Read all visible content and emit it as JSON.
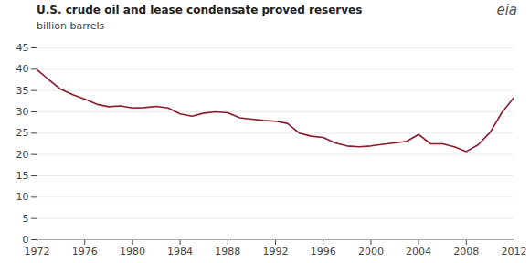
{
  "chart_data": {
    "type": "line",
    "title": "U.S. crude oil and lease condensate  proved reserves",
    "ylabel": "billion barrels",
    "annotations": [
      "eia"
    ],
    "x": [
      1972,
      1973,
      1974,
      1975,
      1976,
      1977,
      1978,
      1979,
      1980,
      1981,
      1982,
      1983,
      1984,
      1985,
      1986,
      1987,
      1988,
      1989,
      1990,
      1991,
      1992,
      1993,
      1994,
      1995,
      1996,
      1997,
      1998,
      1999,
      2000,
      2001,
      2002,
      2003,
      2004,
      2005,
      2006,
      2007,
      2008,
      2009,
      2010,
      2011,
      2012
    ],
    "values": [
      39.9,
      37.5,
      35.3,
      34.0,
      33.0,
      31.8,
      31.2,
      31.4,
      30.9,
      31.0,
      31.3,
      30.9,
      29.5,
      29.0,
      29.7,
      30.0,
      29.8,
      28.6,
      28.3,
      28.0,
      27.8,
      27.3,
      25.0,
      24.3,
      24.0,
      22.7,
      22.0,
      21.8,
      22.0,
      22.4,
      22.7,
      23.1,
      24.7,
      22.5,
      22.5,
      21.8,
      20.7,
      22.3,
      25.2,
      29.9,
      33.4
    ],
    "color": "#8B1A2E",
    "xlim": [
      1972,
      2012
    ],
    "ylim": [
      0,
      45
    ],
    "xticks": [
      1972,
      1976,
      1980,
      1984,
      1988,
      1992,
      1996,
      2000,
      2004,
      2008,
      2012
    ],
    "yticks": [
      0,
      5,
      10,
      15,
      20,
      25,
      30,
      35,
      40,
      45
    ],
    "grid": true
  }
}
